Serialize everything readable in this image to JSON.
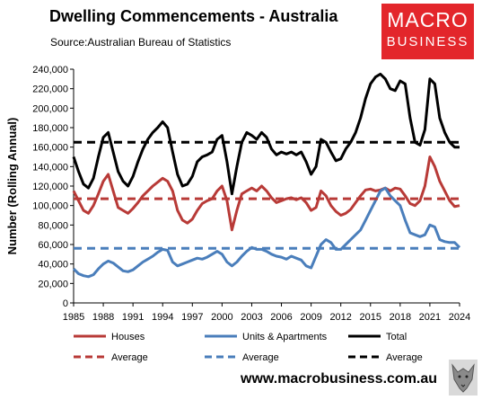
{
  "title": "Dwelling Commencements - Australia",
  "subtitle": "Source:Australian Bureau of Statistics",
  "logo": {
    "line1": "MACRO",
    "line2": "BUSINESS"
  },
  "website": "www.macrobusiness.com.au",
  "chart_data": {
    "type": "line",
    "ylabel": "Number (Rolling Annual)",
    "ylim": [
      0,
      240000
    ],
    "xlim": [
      1985,
      2024
    ],
    "grid": false,
    "legend_placement": "bottom",
    "y_ticks": [
      "0",
      "20,000",
      "40,000",
      "60,000",
      "80,000",
      "100,000",
      "120,000",
      "140,000",
      "160,000",
      "180,000",
      "200,000",
      "220,000",
      "240,000"
    ],
    "x_ticks": [
      "1985",
      "1988",
      "1991",
      "1994",
      "1997",
      "2000",
      "2003",
      "2006",
      "2009",
      "2012",
      "2015",
      "2018",
      "2021",
      "2024"
    ],
    "series": [
      {
        "name": "Houses",
        "color": "#b83a37",
        "style": "solid",
        "x": [
          1985,
          1985.5,
          1986,
          1986.5,
          1987,
          1987.5,
          1988,
          1988.5,
          1989,
          1989.5,
          1990,
          1990.5,
          1991,
          1991.5,
          1992,
          1992.5,
          1993,
          1993.5,
          1994,
          1994.5,
          1995,
          1995.5,
          1996,
          1996.5,
          1997,
          1997.5,
          1998,
          1998.5,
          1999,
          1999.5,
          2000,
          2000.5,
          2001,
          2001.5,
          2002,
          2002.5,
          2003,
          2003.5,
          2004,
          2004.5,
          2005,
          2005.5,
          2006,
          2006.5,
          2007,
          2007.5,
          2008,
          2008.5,
          2009,
          2009.5,
          2010,
          2010.5,
          2011,
          2011.5,
          2012,
          2012.5,
          2013,
          2013.5,
          2014,
          2014.5,
          2015,
          2015.5,
          2016,
          2016.5,
          2017,
          2017.5,
          2018,
          2018.5,
          2019,
          2019.5,
          2020,
          2020.5,
          2021,
          2021.5,
          2022,
          2022.5,
          2023,
          2023.5,
          2024
        ],
        "values": [
          115000,
          105000,
          95000,
          92000,
          100000,
          112000,
          125000,
          132000,
          115000,
          98000,
          95000,
          92000,
          97000,
          103000,
          110000,
          115000,
          120000,
          124000,
          128000,
          125000,
          115000,
          95000,
          85000,
          82000,
          86000,
          95000,
          102000,
          105000,
          107000,
          115000,
          120000,
          105000,
          75000,
          95000,
          112000,
          115000,
          118000,
          115000,
          120000,
          115000,
          108000,
          103000,
          105000,
          107000,
          108000,
          106000,
          108000,
          103000,
          95000,
          98000,
          115000,
          110000,
          100000,
          94000,
          90000,
          92000,
          96000,
          103000,
          110000,
          116000,
          117000,
          115000,
          116000,
          118000,
          115000,
          118000,
          117000,
          110000,
          102000,
          100000,
          105000,
          120000,
          150000,
          140000,
          125000,
          115000,
          105000,
          99000,
          100000
        ]
      },
      {
        "name": "Units & Apartments",
        "color": "#4a7ebb",
        "style": "solid",
        "x": [
          1985,
          1985.5,
          1986,
          1986.5,
          1987,
          1987.5,
          1988,
          1988.5,
          1989,
          1989.5,
          1990,
          1990.5,
          1991,
          1991.5,
          1992,
          1992.5,
          1993,
          1993.5,
          1994,
          1994.5,
          1995,
          1995.5,
          1996,
          1996.5,
          1997,
          1997.5,
          1998,
          1998.5,
          1999,
          1999.5,
          2000,
          2000.5,
          2001,
          2001.5,
          2002,
          2002.5,
          2003,
          2003.5,
          2004,
          2004.5,
          2005,
          2005.5,
          2006,
          2006.5,
          2007,
          2007.5,
          2008,
          2008.5,
          2009,
          2009.5,
          2010,
          2010.5,
          2011,
          2011.5,
          2012,
          2012.5,
          2013,
          2013.5,
          2014,
          2014.5,
          2015,
          2015.5,
          2016,
          2016.5,
          2017,
          2017.5,
          2018,
          2018.5,
          2019,
          2019.5,
          2020,
          2020.5,
          2021,
          2021.5,
          2022,
          2022.5,
          2023,
          2023.5,
          2024
        ],
        "values": [
          35000,
          30000,
          28000,
          27000,
          29000,
          35000,
          40000,
          43000,
          41000,
          37000,
          33000,
          32000,
          34000,
          38000,
          42000,
          45000,
          48000,
          52000,
          55000,
          54000,
          42000,
          38000,
          40000,
          42000,
          44000,
          46000,
          45000,
          47000,
          50000,
          53000,
          50000,
          42000,
          38000,
          42000,
          48000,
          53000,
          57000,
          55000,
          55000,
          53000,
          50000,
          48000,
          47000,
          45000,
          48000,
          46000,
          44000,
          38000,
          36000,
          48000,
          60000,
          65000,
          62000,
          55000,
          55000,
          60000,
          65000,
          70000,
          75000,
          85000,
          95000,
          105000,
          115000,
          118000,
          110000,
          105000,
          100000,
          85000,
          72000,
          70000,
          68000,
          70000,
          80000,
          78000,
          65000,
          63000,
          62000,
          62000,
          57000
        ]
      },
      {
        "name": "Total",
        "color": "#000000",
        "style": "solid",
        "x": [
          1985,
          1985.5,
          1986,
          1986.5,
          1987,
          1987.5,
          1988,
          1988.5,
          1989,
          1989.5,
          1990,
          1990.5,
          1991,
          1991.5,
          1992,
          1992.5,
          1993,
          1993.5,
          1994,
          1994.5,
          1995,
          1995.5,
          1996,
          1996.5,
          1997,
          1997.5,
          1998,
          1998.5,
          1999,
          1999.5,
          2000,
          2000.5,
          2001,
          2001.5,
          2002,
          2002.5,
          2003,
          2003.5,
          2004,
          2004.5,
          2005,
          2005.5,
          2006,
          2006.5,
          2007,
          2007.5,
          2008,
          2008.5,
          2009,
          2009.5,
          2010,
          2010.5,
          2011,
          2011.5,
          2012,
          2012.5,
          2013,
          2013.5,
          2014,
          2014.5,
          2015,
          2015.5,
          2016,
          2016.5,
          2017,
          2017.5,
          2018,
          2018.5,
          2019,
          2019.5,
          2020,
          2020.5,
          2021,
          2021.5,
          2022,
          2022.5,
          2023,
          2023.5,
          2024
        ],
        "values": [
          150000,
          135000,
          122000,
          118000,
          128000,
          150000,
          170000,
          175000,
          155000,
          135000,
          125000,
          120000,
          130000,
          145000,
          158000,
          168000,
          175000,
          180000,
          186000,
          180000,
          155000,
          132000,
          120000,
          122000,
          130000,
          145000,
          150000,
          152000,
          155000,
          168000,
          172000,
          145000,
          112000,
          140000,
          165000,
          175000,
          172000,
          168000,
          175000,
          170000,
          158000,
          152000,
          155000,
          153000,
          155000,
          152000,
          155000,
          145000,
          132000,
          140000,
          168000,
          165000,
          155000,
          146000,
          148000,
          158000,
          165000,
          175000,
          190000,
          210000,
          225000,
          232000,
          235000,
          230000,
          220000,
          218000,
          228000,
          225000,
          190000,
          165000,
          162000,
          178000,
          230000,
          225000,
          190000,
          175000,
          165000,
          160000,
          160000
        ]
      },
      {
        "name": "Average",
        "color": "#b83a37",
        "style": "dashed",
        "x": [
          1985,
          2024
        ],
        "values": [
          107000,
          107000
        ]
      },
      {
        "name": "Average",
        "color": "#4a7ebb",
        "style": "dashed",
        "x": [
          1985,
          2024
        ],
        "values": [
          56000,
          56000
        ]
      },
      {
        "name": "Average",
        "color": "#000000",
        "style": "dashed",
        "x": [
          1985,
          2024
        ],
        "values": [
          165000,
          165000
        ]
      }
    ]
  }
}
